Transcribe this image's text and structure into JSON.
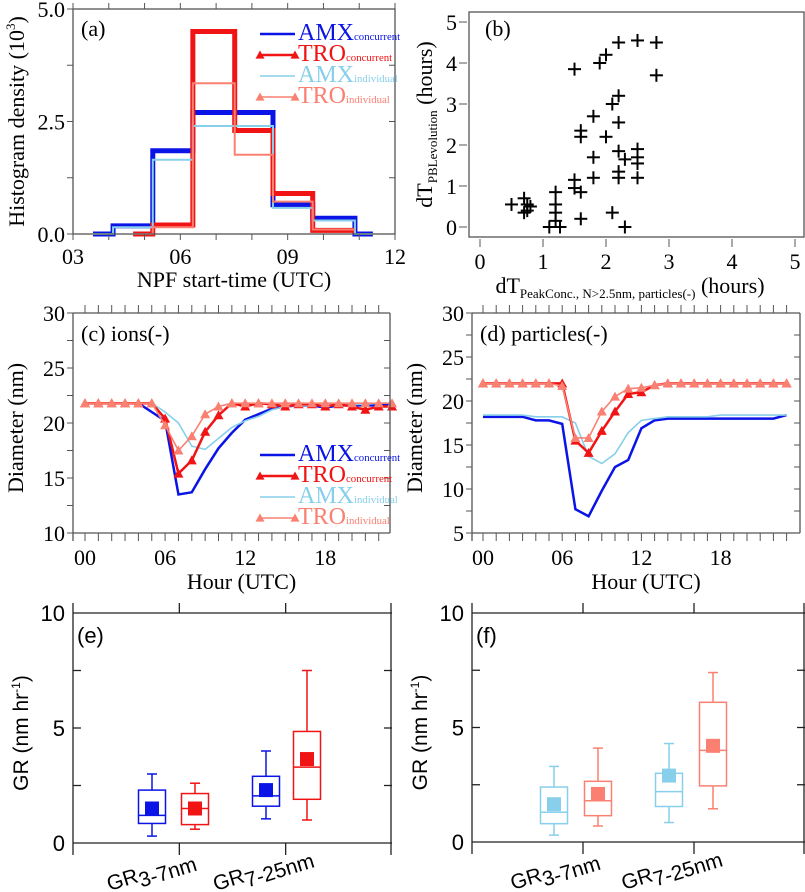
{
  "figure": {
    "colors": {
      "amx_concurrent": "#0a14e6",
      "tro_concurrent": "#f01414",
      "amx_individual": "#87cfea",
      "tro_individual": "#fa8072",
      "axis": "#555555",
      "text": "#000000"
    }
  },
  "chart_data": [
    {
      "id": "a",
      "type": "line",
      "subtype": "step-histogram",
      "panel_label": "(a)",
      "xlabel": "NPF start-time (UTC)",
      "ylabel": "Histogram density (10",
      "ylabel_sup": "3",
      "ylabel_end": ")",
      "xlim": [
        3,
        12
      ],
      "ylim": [
        0,
        5
      ],
      "xticks": [
        "03",
        "06",
        "09",
        "12"
      ],
      "xtick_values": [
        3,
        6,
        9,
        12
      ],
      "yticks": [
        "0.0",
        "2.5",
        "5.0"
      ],
      "ytick_values": [
        0,
        2.5,
        5
      ],
      "legend_position": "top-right",
      "series": [
        {
          "name": "AMX",
          "sub": "concurrent",
          "key": "amx_concurrent",
          "marker": "none",
          "edges": [
            3.56,
            4.12,
            5.23,
            6.35,
            7.52,
            8.59,
            9.7,
            10.88,
            11.38
          ],
          "values": [
            0,
            0.18,
            1.85,
            2.7,
            2.7,
            0.65,
            0.35,
            0
          ]
        },
        {
          "name": "TRO",
          "sub": "concurrent",
          "key": "tro_concurrent",
          "marker": "triangle",
          "edges": [
            4.68,
            5.23,
            6.35,
            7.52,
            8.59,
            9.7,
            10.88
          ],
          "values": [
            0,
            0.2,
            4.5,
            2.3,
            0.9,
            0.08
          ]
        },
        {
          "name": "AMX",
          "sub": "individual",
          "key": "amx_individual",
          "marker": "none",
          "edges": [
            3.56,
            4.12,
            5.23,
            6.35,
            7.52,
            8.59,
            9.7,
            10.88,
            11.38
          ],
          "values": [
            0,
            0.15,
            1.65,
            2.4,
            2.4,
            0.58,
            0.3,
            0
          ]
        },
        {
          "name": "TRO",
          "sub": "individual",
          "key": "tro_individual",
          "marker": "triangle",
          "edges": [
            4.68,
            5.23,
            6.35,
            7.52,
            8.59,
            9.7,
            10.88
          ],
          "values": [
            0,
            0.15,
            3.35,
            1.76,
            0.72,
            0.1
          ]
        }
      ]
    },
    {
      "id": "b",
      "type": "scatter",
      "panel_label": "(b)",
      "xlabel": "dT",
      "xlabel_sub": "PeakConc., N>2.5nm, particles(-)",
      "xlabel_end": " (hours)",
      "ylabel": "dT",
      "ylabel_sub": "PBLevolution",
      "ylabel_end": " (hours)",
      "xlim": [
        0,
        5
      ],
      "ylim": [
        0,
        5
      ],
      "xticks": [
        "0",
        "1",
        "2",
        "3",
        "4",
        "5"
      ],
      "xtick_values": [
        0,
        1,
        2,
        3,
        4,
        5
      ],
      "yticks": [
        "0",
        "1",
        "2",
        "3",
        "4",
        "5"
      ],
      "ytick_values": [
        0,
        1,
        2,
        3,
        4,
        5
      ],
      "marker": "plus",
      "points": [
        [
          0.5,
          0.55
        ],
        [
          0.7,
          0.7
        ],
        [
          0.75,
          0.55
        ],
        [
          0.7,
          0.35
        ],
        [
          0.8,
          0.5
        ],
        [
          0.75,
          0.4
        ],
        [
          1.2,
          0.85
        ],
        [
          1.2,
          0.55
        ],
        [
          1.2,
          0.35
        ],
        [
          1.1,
          0.0
        ],
        [
          1.27,
          0.0
        ],
        [
          1.2,
          0.15
        ],
        [
          1.6,
          0.2
        ],
        [
          1.5,
          1.15
        ],
        [
          1.5,
          0.95
        ],
        [
          1.6,
          0.85
        ],
        [
          1.8,
          1.2
        ],
        [
          1.8,
          1.7
        ],
        [
          1.8,
          2.7
        ],
        [
          1.6,
          2.35
        ],
        [
          1.6,
          2.2
        ],
        [
          2.0,
          2.2
        ],
        [
          2.2,
          2.55
        ],
        [
          2.2,
          3.2
        ],
        [
          2.1,
          3.0
        ],
        [
          2.2,
          1.85
        ],
        [
          2.3,
          1.65
        ],
        [
          2.2,
          1.35
        ],
        [
          2.2,
          1.2
        ],
        [
          2.5,
          1.9
        ],
        [
          2.5,
          1.7
        ],
        [
          2.5,
          1.55
        ],
        [
          2.5,
          1.2
        ],
        [
          2.1,
          0.35
        ],
        [
          2.3,
          0.0
        ],
        [
          1.5,
          3.85
        ],
        [
          1.9,
          4.0
        ],
        [
          2.0,
          4.2
        ],
        [
          2.2,
          4.5
        ],
        [
          2.5,
          4.55
        ],
        [
          2.8,
          4.5
        ],
        [
          2.8,
          3.7
        ]
      ]
    },
    {
      "id": "c",
      "type": "line",
      "panel_label": "(c) ions(-)",
      "xlabel": "Hour (UTC)",
      "ylabel": "Diameter (nm)",
      "xlim": [
        -1,
        23.5
      ],
      "ylim": [
        10,
        30
      ],
      "xticks": [
        "00",
        "06",
        "12",
        "18"
      ],
      "xtick_values": [
        0,
        6,
        12,
        18
      ],
      "yticks": [
        "10",
        "15",
        "20",
        "25",
        "30"
      ],
      "ytick_values": [
        10,
        15,
        20,
        25,
        30
      ],
      "legend_position": "bottom-right",
      "x": [
        0,
        1,
        2,
        3,
        4,
        5,
        6,
        7,
        8,
        9,
        10,
        11,
        12,
        13,
        14,
        15,
        16,
        17,
        18,
        19,
        20,
        21,
        22,
        23
      ],
      "series": [
        {
          "name": "AMX",
          "sub": "concurrent",
          "key": "amx_concurrent",
          "marker": "none",
          "values": [
            21.8,
            21.8,
            21.8,
            21.8,
            21.8,
            21.0,
            20.2,
            13.5,
            13.7,
            15.8,
            17.7,
            19.1,
            20.3,
            20.8,
            21.3,
            21.5,
            21.6,
            21.6,
            21.4,
            21.6,
            21.6,
            21.6,
            21.6,
            21.7
          ]
        },
        {
          "name": "TRO",
          "sub": "concurrent",
          "key": "tro_concurrent",
          "marker": "triangle",
          "values": [
            21.8,
            21.8,
            21.8,
            21.8,
            21.8,
            21.8,
            20.4,
            15.4,
            16.6,
            19.2,
            20.7,
            21.8,
            21.5,
            21.8,
            21.7,
            21.5,
            21.7,
            21.7,
            21.5,
            21.7,
            21.5,
            21.2,
            21.5,
            21.5
          ]
        },
        {
          "name": "AMX",
          "sub": "individual",
          "key": "amx_individual",
          "marker": "none",
          "values": [
            21.8,
            21.8,
            21.8,
            21.8,
            21.8,
            21.8,
            21.0,
            20.0,
            17.9,
            17.6,
            18.6,
            19.6,
            20.2,
            20.6,
            21.2,
            21.5,
            21.6,
            21.6,
            21.6,
            21.7,
            21.7,
            21.7,
            21.8,
            21.8
          ]
        },
        {
          "name": "TRO",
          "sub": "individual",
          "key": "tro_individual",
          "marker": "triangle",
          "values": [
            21.8,
            21.8,
            21.8,
            21.8,
            21.8,
            21.8,
            19.8,
            17.5,
            18.8,
            20.8,
            21.5,
            21.8,
            21.8,
            21.8,
            21.8,
            21.8,
            21.8,
            21.8,
            21.8,
            21.8,
            21.8,
            21.8,
            21.8,
            21.8
          ]
        }
      ]
    },
    {
      "id": "d",
      "type": "line",
      "panel_label": "(d) particles(-)",
      "xlabel": "Hour (UTC)",
      "ylabel": "Diameter (nm)",
      "xlim": [
        -1,
        23.5
      ],
      "ylim": [
        5,
        30
      ],
      "xticks": [
        "00",
        "06",
        "12",
        "18"
      ],
      "xtick_values": [
        0,
        6,
        12,
        18
      ],
      "yticks": [
        "5",
        "10",
        "15",
        "20",
        "25",
        "30"
      ],
      "ytick_values": [
        5,
        10,
        15,
        20,
        25,
        30
      ],
      "x": [
        0,
        1,
        2,
        3,
        4,
        5,
        6,
        7,
        8,
        9,
        10,
        11,
        12,
        13,
        14,
        15,
        16,
        17,
        18,
        19,
        20,
        21,
        22,
        23
      ],
      "series": [
        {
          "name": "AMX",
          "sub": "concurrent",
          "key": "amx_concurrent",
          "marker": "none",
          "values": [
            18.2,
            18.2,
            18.2,
            18.2,
            17.8,
            17.8,
            17.4,
            7.7,
            6.9,
            9.8,
            12.5,
            13.3,
            16.9,
            17.8,
            18.0,
            18.0,
            18.0,
            18.0,
            18.0,
            18.0,
            18.0,
            18.0,
            18.0,
            18.4
          ]
        },
        {
          "name": "TRO",
          "sub": "concurrent",
          "key": "tro_concurrent",
          "marker": "triangle",
          "values": [
            22.0,
            22.0,
            22.0,
            22.0,
            22.0,
            22.0,
            22.0,
            15.5,
            14.1,
            16.6,
            18.8,
            20.8,
            21.0,
            21.8,
            22.0,
            22.0,
            22.0,
            22.0,
            22.0,
            22.0,
            22.0,
            22.0,
            22.0,
            22.0
          ]
        },
        {
          "name": "AMX",
          "sub": "individual",
          "key": "amx_individual",
          "marker": "none",
          "values": [
            18.4,
            18.4,
            18.4,
            18.4,
            18.2,
            18.2,
            18.2,
            17.5,
            13.7,
            12.9,
            14.0,
            16.4,
            17.8,
            18.0,
            18.2,
            18.2,
            18.2,
            18.2,
            18.4,
            18.4,
            18.4,
            18.4,
            18.4,
            18.4
          ]
        },
        {
          "name": "TRO",
          "sub": "individual",
          "key": "tro_individual",
          "marker": "triangle",
          "values": [
            22.0,
            22.0,
            22.0,
            22.0,
            22.0,
            22.0,
            21.7,
            15.8,
            15.8,
            18.8,
            20.5,
            21.4,
            21.5,
            21.8,
            22.0,
            22.0,
            22.0,
            22.0,
            22.0,
            22.0,
            22.0,
            22.0,
            22.0,
            22.0
          ]
        }
      ]
    },
    {
      "id": "e",
      "type": "box",
      "panel_label": "(e)",
      "ylabel": "GR (nm hr",
      "ylabel_sup": "-1",
      "ylabel_end": ")",
      "ylim": [
        0,
        10
      ],
      "yticks": [
        "0",
        "5",
        "10"
      ],
      "ytick_values": [
        0,
        5,
        10
      ],
      "categories": [
        "GR",
        "GR"
      ],
      "category_subs": [
        "3-7nm",
        "7-25nm"
      ],
      "boxes": [
        {
          "category": 0,
          "key": "amx_concurrent",
          "whisker_low": 0.3,
          "q1": 0.85,
          "median": 1.2,
          "q3": 2.3,
          "whisker_high": 3.0,
          "mean": 1.5
        },
        {
          "category": 0,
          "key": "tro_concurrent",
          "whisker_low": 0.6,
          "q1": 0.8,
          "median": 1.5,
          "q3": 2.15,
          "whisker_high": 2.6,
          "mean": 1.5
        },
        {
          "category": 1,
          "key": "amx_concurrent",
          "whisker_low": 1.05,
          "q1": 1.6,
          "median": 2.05,
          "q3": 2.9,
          "whisker_high": 4.0,
          "mean": 2.3
        },
        {
          "category": 1,
          "key": "tro_concurrent",
          "whisker_low": 1.0,
          "q1": 1.9,
          "median": 3.3,
          "q3": 4.85,
          "whisker_high": 7.5,
          "mean": 3.65
        }
      ]
    },
    {
      "id": "f",
      "type": "box",
      "panel_label": "(f)",
      "ylabel": "GR (nm hr",
      "ylabel_sup": "-1",
      "ylabel_end": ")",
      "ylim": [
        0,
        10
      ],
      "yticks": [
        "0",
        "5",
        "10"
      ],
      "ytick_values": [
        0,
        5,
        10
      ],
      "categories": [
        "GR",
        "GR"
      ],
      "category_subs": [
        "3-7nm",
        "7-25nm"
      ],
      "boxes": [
        {
          "category": 0,
          "key": "amx_individual",
          "whisker_low": 0.3,
          "q1": 0.8,
          "median": 1.3,
          "q3": 2.4,
          "whisker_high": 3.3,
          "mean": 1.65
        },
        {
          "category": 0,
          "key": "tro_individual",
          "whisker_low": 0.7,
          "q1": 1.15,
          "median": 1.8,
          "q3": 2.65,
          "whisker_high": 4.1,
          "mean": 2.1
        },
        {
          "category": 1,
          "key": "amx_individual",
          "whisker_low": 0.85,
          "q1": 1.55,
          "median": 2.2,
          "q3": 3.0,
          "whisker_high": 4.3,
          "mean": 2.9
        },
        {
          "category": 1,
          "key": "tro_individual",
          "whisker_low": 1.45,
          "q1": 2.45,
          "median": 4.0,
          "q3": 6.1,
          "whisker_high": 7.4,
          "mean": 4.2
        }
      ]
    }
  ]
}
